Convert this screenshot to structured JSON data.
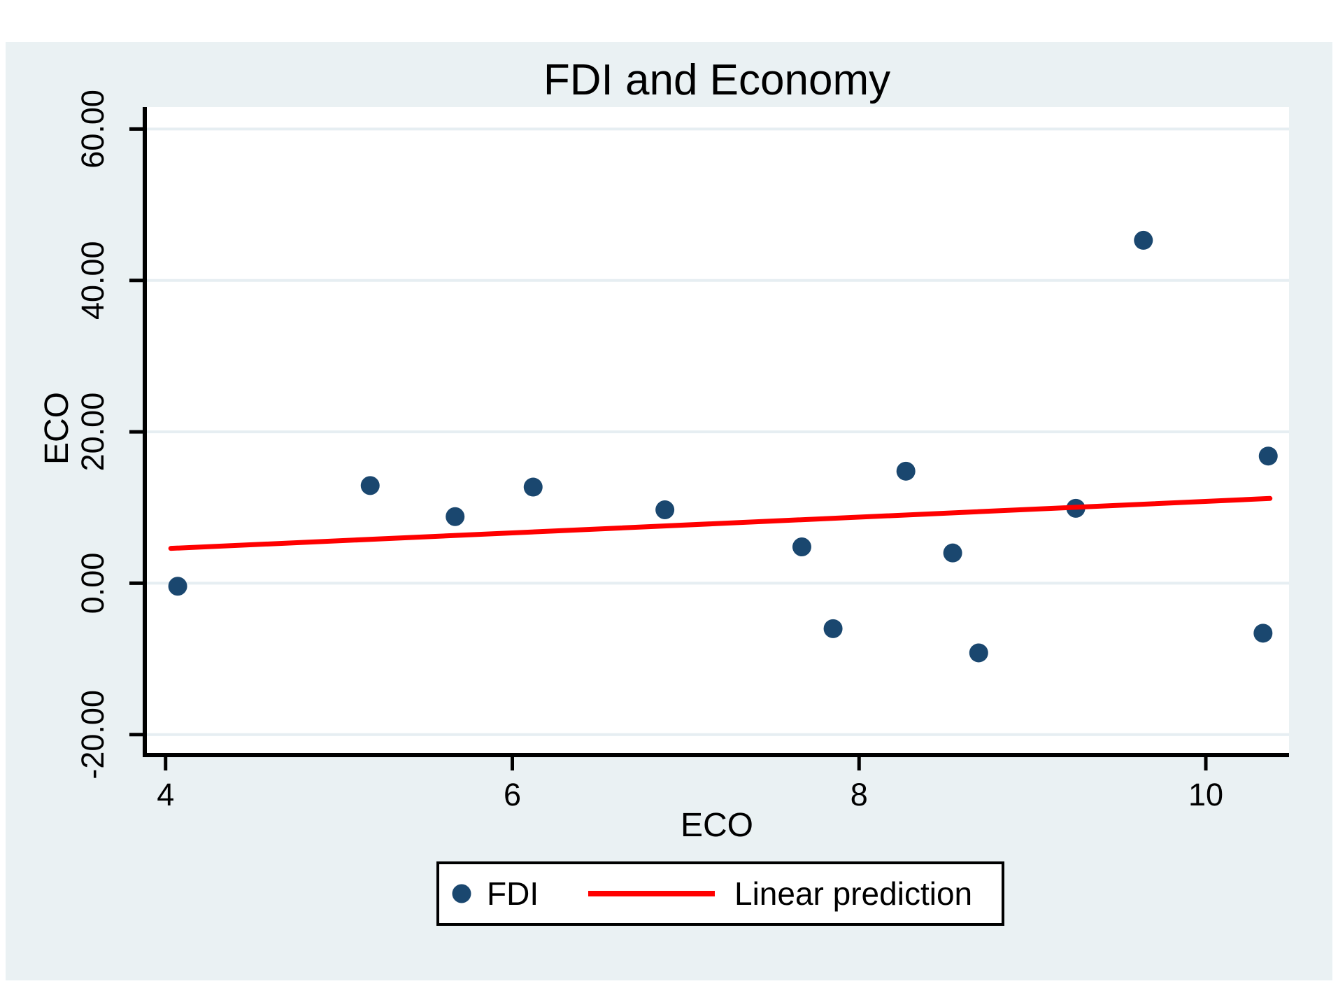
{
  "window": {
    "title": "FDI and Economy"
  },
  "colors": {
    "background": "#eaf1f3",
    "plot_background": "#ffffff",
    "gridline": "#e6eef2",
    "axis": "#000000",
    "scatter": "#1a476f",
    "fit_line": "#ff0000",
    "title_text": "#273a60",
    "legend_border": "#000000",
    "legend_background": "#ffffff"
  },
  "chart_data": {
    "type": "scatter",
    "title": "FDI and Economy",
    "xlabel": "ECO",
    "ylabel": "ECO",
    "xlim": [
      3.88,
      10.48
    ],
    "ylim": [
      -22.7,
      62.9
    ],
    "x_ticks": [
      4,
      6,
      8,
      10
    ],
    "x_tick_labels": [
      "4",
      "6",
      "8",
      "10"
    ],
    "y_ticks": [
      60,
      40,
      20,
      0,
      -20
    ],
    "y_tick_labels": [
      "60.00",
      "40.00",
      "20.00",
      "0.00",
      "-20.00"
    ],
    "grid": "horizontal gridlines at y ticks, light blue on white",
    "legend_position": "bottom center, outside plot, boxed",
    "series": [
      {
        "name": "FDI",
        "kind": "scatter",
        "color": "#1a476f",
        "marker": "circle",
        "points": [
          [
            4.07,
            -0.4
          ],
          [
            5.18,
            12.9
          ],
          [
            5.67,
            8.8
          ],
          [
            6.12,
            12.7
          ],
          [
            6.88,
            9.7
          ],
          [
            7.67,
            4.8
          ],
          [
            7.85,
            -6.0
          ],
          [
            8.27,
            14.8
          ],
          [
            8.54,
            4.0
          ],
          [
            8.69,
            -9.2
          ],
          [
            9.25,
            9.9
          ],
          [
            9.64,
            45.3
          ],
          [
            10.33,
            -6.6
          ],
          [
            10.36,
            16.8
          ]
        ]
      },
      {
        "name": "Linear prediction",
        "kind": "line",
        "color": "#ff0000",
        "points": [
          [
            4.03,
            4.6
          ],
          [
            10.37,
            11.2
          ]
        ]
      }
    ]
  },
  "legend": {
    "items": [
      {
        "label": "FDI",
        "symbol": "dot",
        "color": "#1a476f"
      },
      {
        "label": "Linear prediction",
        "symbol": "line",
        "color": "#ff0000"
      }
    ]
  }
}
